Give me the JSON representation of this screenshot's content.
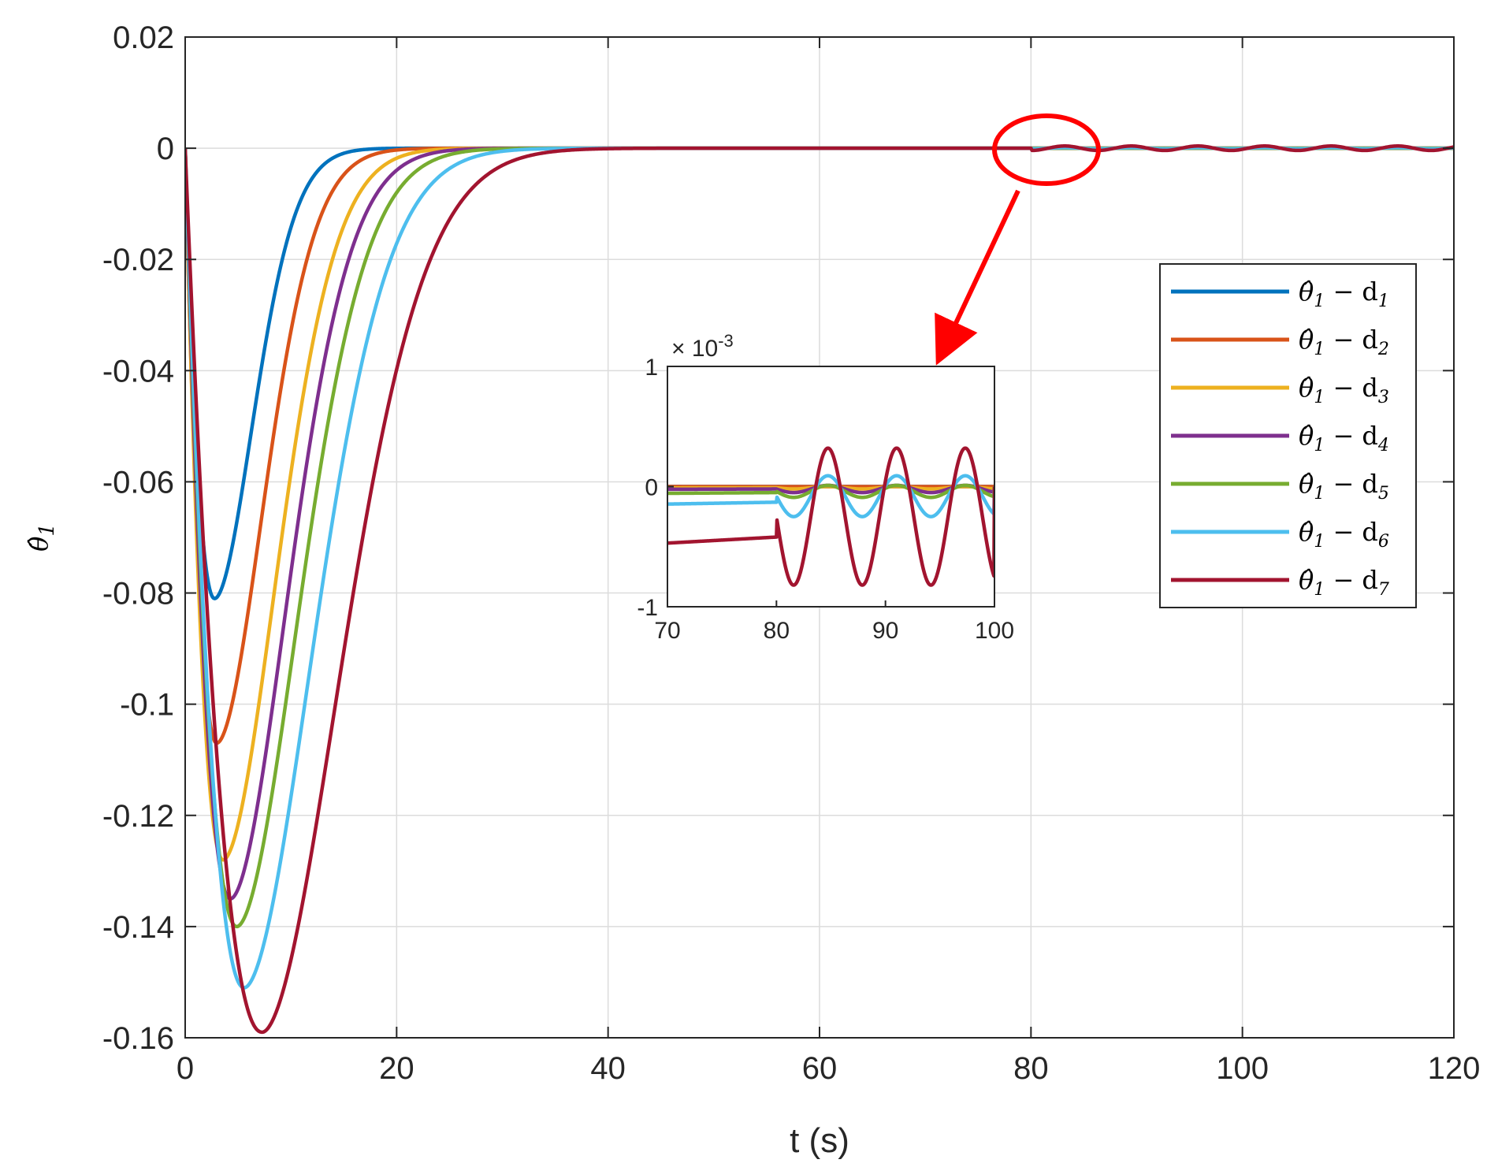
{
  "chart_data": [
    {
      "type": "line",
      "xlabel": "t (s)",
      "ylabel": "θ̂1",
      "xlim": [
        0,
        120
      ],
      "ylim": [
        -0.16,
        0.02
      ],
      "xticks": [
        0,
        20,
        40,
        60,
        80,
        100,
        120
      ],
      "xtick_labels": [
        "0",
        "20",
        "40",
        "60",
        "80",
        "100",
        "120"
      ],
      "yticks": [
        0.02,
        0,
        -0.02,
        -0.04,
        -0.06,
        -0.08,
        -0.1,
        -0.12,
        -0.14,
        -0.16
      ],
      "ytick_labels": [
        "0.02",
        "0",
        "-0.02",
        "-0.04",
        "-0.06",
        "-0.08",
        "-0.1",
        "-0.12",
        "-0.14",
        "-0.16"
      ],
      "grid": true,
      "legend_position": "right",
      "series": [
        {
          "name": "θ̂1 − d1",
          "sub": "1",
          "color": "#0072BD",
          "min_t": 2.8,
          "min_v": -0.081,
          "rise": 3.4
        },
        {
          "name": "θ̂1 − d2",
          "sub": "2",
          "color": "#D95319",
          "min_t": 3.0,
          "min_v": -0.107,
          "rise": 4.1
        },
        {
          "name": "θ̂1 − d3",
          "sub": "3",
          "color": "#EDB120",
          "min_t": 3.6,
          "min_v": -0.128,
          "rise": 4.7
        },
        {
          "name": "θ̂1 − d4",
          "sub": "4",
          "color": "#7E2F8E",
          "min_t": 4.3,
          "min_v": -0.135,
          "rise": 5.0
        },
        {
          "name": "θ̂1 − d5",
          "sub": "5",
          "color": "#77AC30",
          "min_t": 4.9,
          "min_v": -0.14,
          "rise": 5.4
        },
        {
          "name": "θ̂1 − d6",
          "sub": "6",
          "color": "#4DBEEE",
          "min_t": 5.6,
          "min_v": -0.151,
          "rise": 6.0
        },
        {
          "name": "θ̂1 − d7",
          "sub": "7",
          "color": "#A2142F",
          "min_t": 7.3,
          "min_v": -0.159,
          "rise": 6.8
        }
      ],
      "highlight": {
        "center_t": 81,
        "center_v": 0,
        "color": "#FF0000"
      }
    },
    {
      "type": "line",
      "inset": true,
      "exponent_label": "× 10^-3",
      "exponent_base": "× 10",
      "exponent_power": "-3",
      "xlim": [
        70,
        100
      ],
      "ylim": [
        -1,
        1
      ],
      "xticks": [
        70,
        80,
        90,
        100
      ],
      "xtick_labels": [
        "70",
        "80",
        "90",
        "100"
      ],
      "yticks": [
        1,
        0,
        -1
      ],
      "ytick_labels": [
        "1",
        "0",
        "-1"
      ],
      "grid": false,
      "series": [
        {
          "name": "θ̂1 − d1",
          "color": "#0072BD",
          "offset": 0.0,
          "amp": 0.0,
          "pre": 0.0
        },
        {
          "name": "θ̂1 − d2",
          "color": "#D95319",
          "offset": 0.0,
          "amp": 0.0,
          "pre": 0.0
        },
        {
          "name": "θ̂1 − d3",
          "color": "#EDB120",
          "offset": -0.01,
          "amp": 0.01,
          "pre": -0.01
        },
        {
          "name": "θ̂1 − d4",
          "color": "#7E2F8E",
          "offset": -0.02,
          "amp": 0.03,
          "pre": -0.02
        },
        {
          "name": "θ̂1 − d5",
          "color": "#77AC30",
          "offset": -0.04,
          "amp": 0.05,
          "pre": -0.05
        },
        {
          "name": "θ̂1 − d6",
          "color": "#4DBEEE",
          "offset": -0.08,
          "amp": 0.17,
          "pre": -0.13
        },
        {
          "name": "θ̂1 − d7",
          "color": "#A2142F",
          "offset": -0.25,
          "amp": 0.57,
          "pre": -0.42
        }
      ]
    }
  ]
}
